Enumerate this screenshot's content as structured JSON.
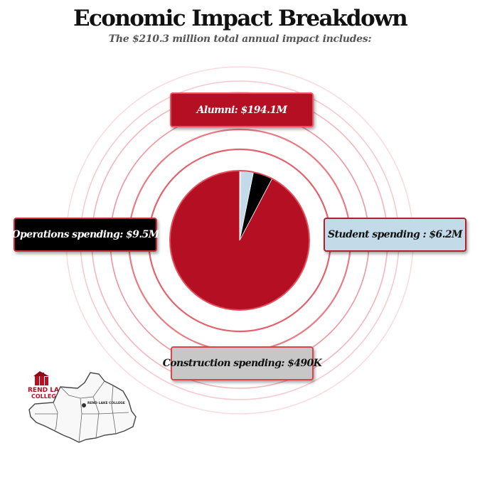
{
  "title": "Economic Impact Breakdown",
  "subtitle": "The $210.3 million total annual impact includes:",
  "callouts": {
    "alumni": "Alumni: $194.1M",
    "operations": "Operations spending: $9.5M",
    "student": "Student spending : $6.2M",
    "construction": "Construction spending: $490K"
  },
  "logo": {
    "name_line1": "REND LAKE",
    "name_line2": "COLLEGE",
    "map_label": "REND LAKE COLLEGE"
  },
  "colors": {
    "alumni": "#b50f23",
    "operations": "#000000",
    "student": "#c3dbe8",
    "construction": "#c7c7c7",
    "ring": "#e0505c"
  },
  "chart_data": {
    "type": "pie",
    "title": "Economic Impact Breakdown",
    "total_label": "$210.3 million",
    "slices": [
      {
        "label": "Alumni",
        "value": 194.1,
        "unit": "million USD",
        "color": "#b50f23"
      },
      {
        "label": "Operations spending",
        "value": 9.5,
        "unit": "million USD",
        "color": "#000000"
      },
      {
        "label": "Student spending",
        "value": 6.2,
        "unit": "million USD",
        "color": "#c3dbe8"
      },
      {
        "label": "Construction spending",
        "value": 0.49,
        "unit": "million USD",
        "color": "#c7c7c7"
      }
    ],
    "start_angle": "12 o'clock",
    "direction": "counter-clockwise",
    "legend": "callout boxes around pie"
  }
}
